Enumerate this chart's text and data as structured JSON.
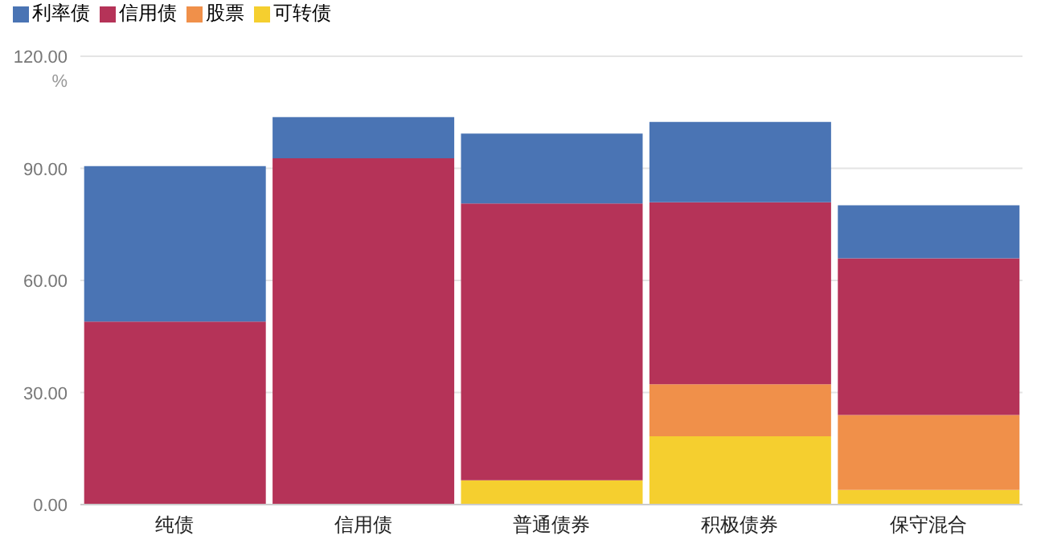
{
  "chart_data": {
    "type": "bar",
    "stacked": true,
    "categories": [
      "纯债",
      "信用债",
      "普通债券",
      "积极债券",
      "保守混合"
    ],
    "series": [
      {
        "name": "可转债",
        "color": "#f5cf2f",
        "values": [
          0,
          0,
          6.5,
          18.3,
          3.9
        ]
      },
      {
        "name": "股票",
        "color": "#f0904a",
        "values": [
          0,
          0,
          0,
          13.9,
          20.1
        ]
      },
      {
        "name": "信用债",
        "color": "#b53358",
        "values": [
          49,
          92.7,
          74.1,
          48.7,
          41.9
        ]
      },
      {
        "name": "利率债",
        "color": "#4a74b4",
        "values": [
          41.6,
          11,
          18.7,
          21.5,
          14.2
        ]
      }
    ],
    "ylabel": "%",
    "ylim": [
      0,
      120
    ],
    "yticks": [
      {
        "value": 0,
        "label": "0.00"
      },
      {
        "value": 30,
        "label": "30.00"
      },
      {
        "value": 60,
        "label": "60.00"
      },
      {
        "value": 90,
        "label": "90.00"
      },
      {
        "value": 120,
        "label": "120.00"
      }
    ],
    "grid": "y",
    "legend": "top left"
  }
}
